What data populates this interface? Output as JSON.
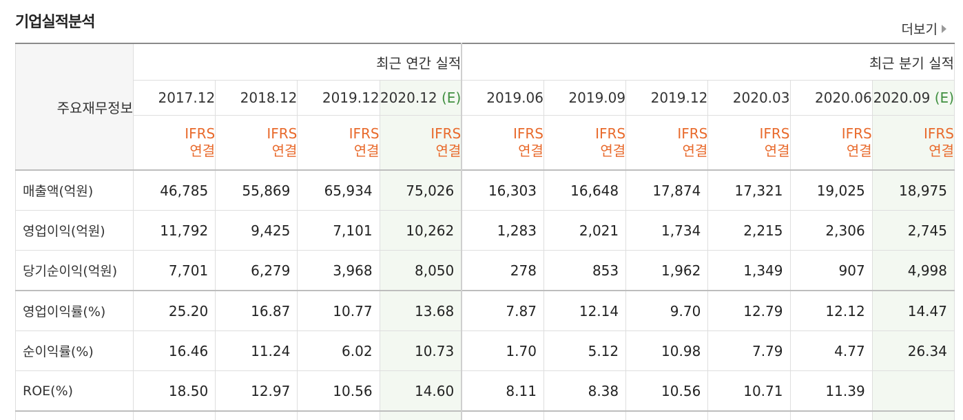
{
  "section_title": "기업실적분석",
  "more_label": "더보기",
  "header": {
    "row_label": "주요재무정보",
    "annual_label": "최근 연간 실적",
    "quarterly_label": "최근 분기 실적",
    "annual_periods": [
      {
        "period": "2017.12",
        "est": ""
      },
      {
        "period": "2018.12",
        "est": ""
      },
      {
        "period": "2019.12",
        "est": ""
      },
      {
        "period": "2020.12",
        "est": "(E)"
      }
    ],
    "quarterly_periods": [
      {
        "period": "2019.06",
        "est": ""
      },
      {
        "period": "2019.09",
        "est": ""
      },
      {
        "period": "2019.12",
        "est": ""
      },
      {
        "period": "2020.03",
        "est": ""
      },
      {
        "period": "2020.06",
        "est": ""
      },
      {
        "period": "2020.09",
        "est": "(E)"
      }
    ],
    "ifrs_top": "IFRS",
    "ifrs_bottom": "연결"
  },
  "rows": [
    {
      "label": "매출액(억원)",
      "values": [
        "46,785",
        "55,869",
        "65,934",
        "75,026",
        "16,303",
        "16,648",
        "17,874",
        "17,321",
        "19,025",
        "18,975"
      ]
    },
    {
      "label": "영업이익(억원)",
      "values": [
        "11,792",
        "9,425",
        "7,101",
        "10,262",
        "1,283",
        "2,021",
        "1,734",
        "2,215",
        "2,306",
        "2,745"
      ]
    },
    {
      "label": "당기순이익(억원)",
      "values": [
        "7,701",
        "6,279",
        "3,968",
        "8,050",
        "278",
        "853",
        "1,962",
        "1,349",
        "907",
        "4,998"
      ]
    },
    {
      "label": "영업이익률(%)",
      "values": [
        "25.20",
        "16.87",
        "10.77",
        "13.68",
        "7.87",
        "12.14",
        "9.70",
        "12.79",
        "12.12",
        "14.47"
      ]
    },
    {
      "label": "순이익률(%)",
      "values": [
        "16.46",
        "11.24",
        "6.02",
        "10.73",
        "1.70",
        "5.12",
        "10.98",
        "7.79",
        "4.77",
        "26.34"
      ]
    },
    {
      "label": "ROE(%)",
      "values": [
        "18.50",
        "12.97",
        "10.56",
        "14.60",
        "8.11",
        "8.38",
        "10.56",
        "10.71",
        "11.39",
        ""
      ]
    }
  ],
  "colors": {
    "estimate_bg": "#f3f8f1",
    "ifrs": "#e86a2c",
    "estimate_tag": "#3f8f3f"
  }
}
